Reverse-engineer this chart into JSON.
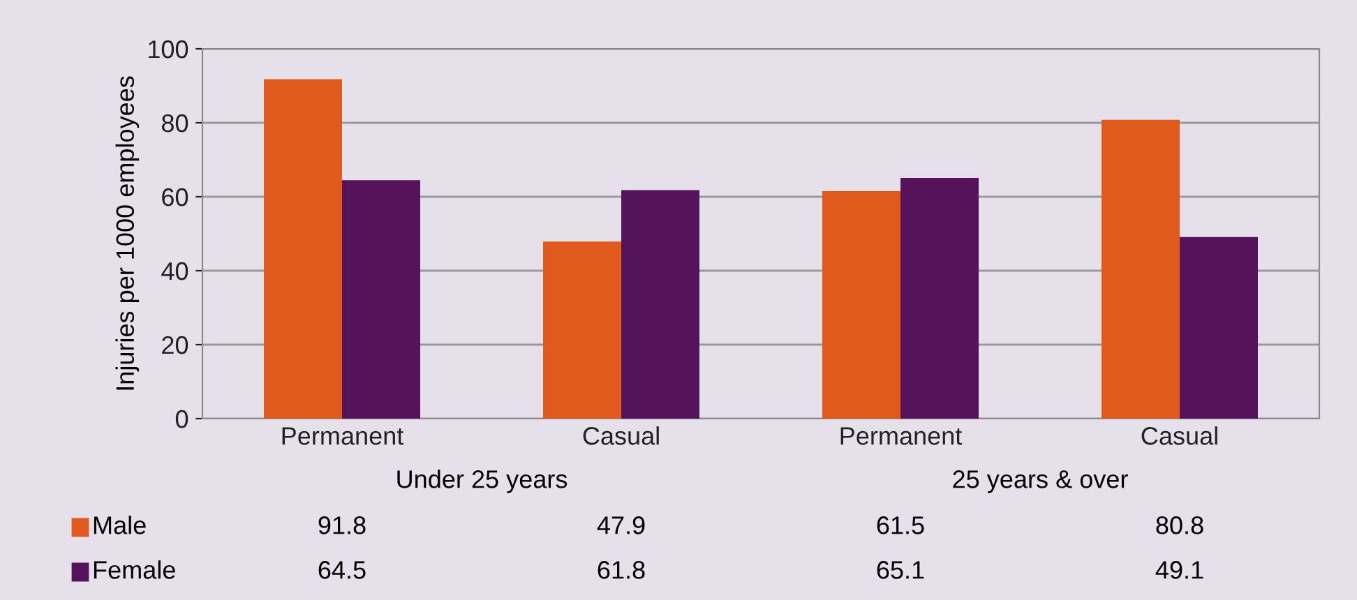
{
  "chart_data": {
    "type": "bar",
    "ylabel": "Injuries per 1000 employees",
    "categories": [
      "Permanent",
      "Casual",
      "Permanent",
      "Casual"
    ],
    "series": [
      {
        "name": "Male",
        "color": "#e05a1e",
        "values": [
          91.8,
          47.9,
          61.5,
          80.8
        ]
      },
      {
        "name": "Female",
        "color": "#54135a",
        "values": [
          64.5,
          61.8,
          65.1,
          49.1
        ]
      }
    ],
    "annotations": [
      "Under 25 years",
      "25 years & over"
    ],
    "ylim": [
      0,
      100
    ],
    "yticks": [
      0,
      20,
      40,
      60,
      80,
      100
    ],
    "grid": "y",
    "data_labels": true,
    "legend": "bottom"
  }
}
